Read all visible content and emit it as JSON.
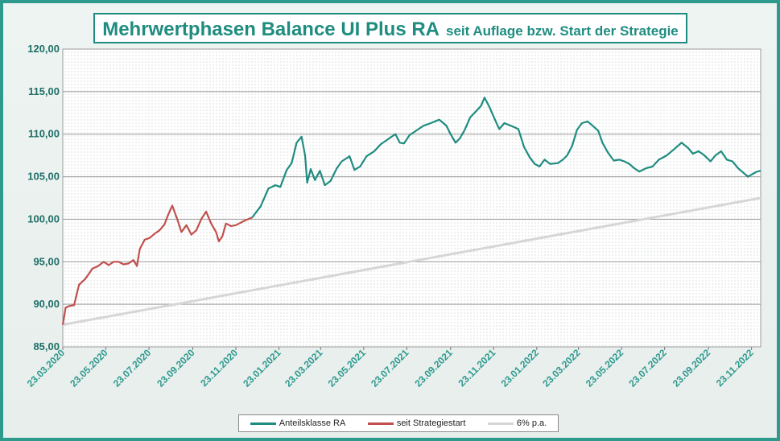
{
  "title": {
    "main": "Mehrwertphasen Balance UI Plus RA",
    "sub": "seit Auflage bzw. Start der Strategie"
  },
  "colors": {
    "teal": "#1f8c80",
    "red": "#c0504d",
    "gray": "#d6d6d6",
    "grid": "#9a9a9a"
  },
  "chart_data": {
    "type": "line",
    "title": "Mehrwertphasen Balance UI Plus RA seit Auflage bzw. Start der Strategie",
    "ylim": [
      85,
      120
    ],
    "xlim": [
      "2020-03-23",
      "2022-12-06"
    ],
    "yticks": [
      "85,00",
      "90,00",
      "95,00",
      "100,00",
      "105,00",
      "110,00",
      "115,00",
      "120,00"
    ],
    "xticks": [
      "23.03.2020",
      "23.05.2020",
      "23.07.2020",
      "23.09.2020",
      "23.11.2020",
      "23.01.2021",
      "23.03.2021",
      "23.05.2021",
      "23.07.2021",
      "23.09.2021",
      "23.11.2021",
      "23.01.2022",
      "23.03.2022",
      "23.05.2022",
      "23.07.2022",
      "23.09.2022",
      "23.11.2022"
    ],
    "grid": true,
    "legend_position": "bottom",
    "series": [
      {
        "name": "Anteilsklasse RA",
        "color": "#1f8c80",
        "points": [
          [
            "2020-12-16",
            100.2
          ],
          [
            "2020-12-28",
            101.5
          ],
          [
            "2021-01-08",
            103.6
          ],
          [
            "2021-01-18",
            104.0
          ],
          [
            "2021-01-25",
            103.8
          ],
          [
            "2021-02-03",
            105.8
          ],
          [
            "2021-02-10",
            106.6
          ],
          [
            "2021-02-17",
            109.0
          ],
          [
            "2021-02-24",
            109.7
          ],
          [
            "2021-03-01",
            107.5
          ],
          [
            "2021-03-04",
            104.3
          ],
          [
            "2021-03-09",
            105.9
          ],
          [
            "2021-03-15",
            104.6
          ],
          [
            "2021-03-22",
            105.7
          ],
          [
            "2021-03-29",
            104.0
          ],
          [
            "2021-04-06",
            104.5
          ],
          [
            "2021-04-15",
            106.0
          ],
          [
            "2021-04-22",
            106.8
          ],
          [
            "2021-05-03",
            107.4
          ],
          [
            "2021-05-10",
            105.8
          ],
          [
            "2021-05-18",
            106.2
          ],
          [
            "2021-05-27",
            107.4
          ],
          [
            "2021-06-07",
            108.0
          ],
          [
            "2021-06-16",
            108.8
          ],
          [
            "2021-06-28",
            109.5
          ],
          [
            "2021-07-07",
            110.0
          ],
          [
            "2021-07-13",
            109.0
          ],
          [
            "2021-07-19",
            108.9
          ],
          [
            "2021-07-27",
            109.9
          ],
          [
            "2021-08-05",
            110.4
          ],
          [
            "2021-08-16",
            111.0
          ],
          [
            "2021-08-26",
            111.3
          ],
          [
            "2021-09-07",
            111.7
          ],
          [
            "2021-09-17",
            111.0
          ],
          [
            "2021-09-23",
            110.0
          ],
          [
            "2021-09-30",
            109.0
          ],
          [
            "2021-10-06",
            109.5
          ],
          [
            "2021-10-13",
            110.5
          ],
          [
            "2021-10-21",
            112.0
          ],
          [
            "2021-10-28",
            112.6
          ],
          [
            "2021-11-05",
            113.3
          ],
          [
            "2021-11-10",
            114.3
          ],
          [
            "2021-11-17",
            113.2
          ],
          [
            "2021-11-26",
            111.5
          ],
          [
            "2021-12-01",
            110.6
          ],
          [
            "2021-12-08",
            111.3
          ],
          [
            "2021-12-17",
            111.0
          ],
          [
            "2021-12-28",
            110.6
          ],
          [
            "2022-01-05",
            108.5
          ],
          [
            "2022-01-13",
            107.3
          ],
          [
            "2022-01-20",
            106.5
          ],
          [
            "2022-01-27",
            106.2
          ],
          [
            "2022-02-03",
            107.0
          ],
          [
            "2022-02-11",
            106.5
          ],
          [
            "2022-02-22",
            106.6
          ],
          [
            "2022-03-01",
            107.0
          ],
          [
            "2022-03-07",
            107.5
          ],
          [
            "2022-03-14",
            108.6
          ],
          [
            "2022-03-21",
            110.5
          ],
          [
            "2022-03-28",
            111.3
          ],
          [
            "2022-04-05",
            111.5
          ],
          [
            "2022-04-12",
            111.0
          ],
          [
            "2022-04-20",
            110.4
          ],
          [
            "2022-04-26",
            109.0
          ],
          [
            "2022-05-04",
            107.8
          ],
          [
            "2022-05-12",
            106.9
          ],
          [
            "2022-05-20",
            107.0
          ],
          [
            "2022-05-27",
            106.8
          ],
          [
            "2022-06-03",
            106.5
          ],
          [
            "2022-06-10",
            106.0
          ],
          [
            "2022-06-17",
            105.6
          ],
          [
            "2022-06-27",
            106.0
          ],
          [
            "2022-07-06",
            106.2
          ],
          [
            "2022-07-15",
            107.0
          ],
          [
            "2022-07-26",
            107.5
          ],
          [
            "2022-08-05",
            108.2
          ],
          [
            "2022-08-16",
            109.0
          ],
          [
            "2022-08-25",
            108.4
          ],
          [
            "2022-09-01",
            107.7
          ],
          [
            "2022-09-09",
            108.0
          ],
          [
            "2022-09-16",
            107.6
          ],
          [
            "2022-09-26",
            106.8
          ],
          [
            "2022-10-03",
            107.5
          ],
          [
            "2022-10-11",
            108.0
          ],
          [
            "2022-10-19",
            107.0
          ],
          [
            "2022-10-27",
            106.8
          ],
          [
            "2022-11-04",
            106.0
          ],
          [
            "2022-11-11",
            105.5
          ],
          [
            "2022-11-18",
            105.0
          ],
          [
            "2022-11-24",
            105.3
          ],
          [
            "2022-12-01",
            105.6
          ],
          [
            "2022-12-06",
            105.7
          ]
        ]
      },
      {
        "name": "seit Strategiestart",
        "color": "#c0504d",
        "points": [
          [
            "2020-03-23",
            87.6
          ],
          [
            "2020-03-27",
            89.6
          ],
          [
            "2020-04-01",
            89.8
          ],
          [
            "2020-04-08",
            89.9
          ],
          [
            "2020-04-15",
            92.3
          ],
          [
            "2020-04-24",
            93.0
          ],
          [
            "2020-05-04",
            94.2
          ],
          [
            "2020-05-12",
            94.5
          ],
          [
            "2020-05-20",
            95.0
          ],
          [
            "2020-05-27",
            94.6
          ],
          [
            "2020-06-03",
            95.0
          ],
          [
            "2020-06-10",
            95.0
          ],
          [
            "2020-06-17",
            94.7
          ],
          [
            "2020-06-24",
            94.8
          ],
          [
            "2020-07-01",
            95.2
          ],
          [
            "2020-07-06",
            94.5
          ],
          [
            "2020-07-10",
            96.5
          ],
          [
            "2020-07-17",
            97.6
          ],
          [
            "2020-07-24",
            97.8
          ],
          [
            "2020-07-31",
            98.3
          ],
          [
            "2020-08-07",
            98.7
          ],
          [
            "2020-08-14",
            99.4
          ],
          [
            "2020-08-19",
            100.5
          ],
          [
            "2020-08-25",
            101.6
          ],
          [
            "2020-09-01",
            100.0
          ],
          [
            "2020-09-07",
            98.5
          ],
          [
            "2020-09-14",
            99.3
          ],
          [
            "2020-09-21",
            98.2
          ],
          [
            "2020-09-28",
            98.7
          ],
          [
            "2020-10-05",
            100.0
          ],
          [
            "2020-10-12",
            100.9
          ],
          [
            "2020-10-19",
            99.5
          ],
          [
            "2020-10-26",
            98.5
          ],
          [
            "2020-10-30",
            97.4
          ],
          [
            "2020-11-04",
            98.0
          ],
          [
            "2020-11-09",
            99.5
          ],
          [
            "2020-11-16",
            99.2
          ],
          [
            "2020-11-23",
            99.3
          ],
          [
            "2020-11-30",
            99.6
          ],
          [
            "2020-12-07",
            99.9
          ],
          [
            "2020-12-16",
            100.2
          ]
        ]
      },
      {
        "name": "6% p.a.",
        "color": "#d6d6d6",
        "points": [
          [
            "2020-03-23",
            87.6
          ],
          [
            "2022-12-06",
            102.5
          ]
        ]
      }
    ]
  },
  "legend": [
    {
      "label": "Anteilsklasse RA",
      "color": "#1f8c80"
    },
    {
      "label": "seit Strategiestart",
      "color": "#c0504d"
    },
    {
      "label": "6% p.a.",
      "color": "#d6d6d6"
    }
  ]
}
